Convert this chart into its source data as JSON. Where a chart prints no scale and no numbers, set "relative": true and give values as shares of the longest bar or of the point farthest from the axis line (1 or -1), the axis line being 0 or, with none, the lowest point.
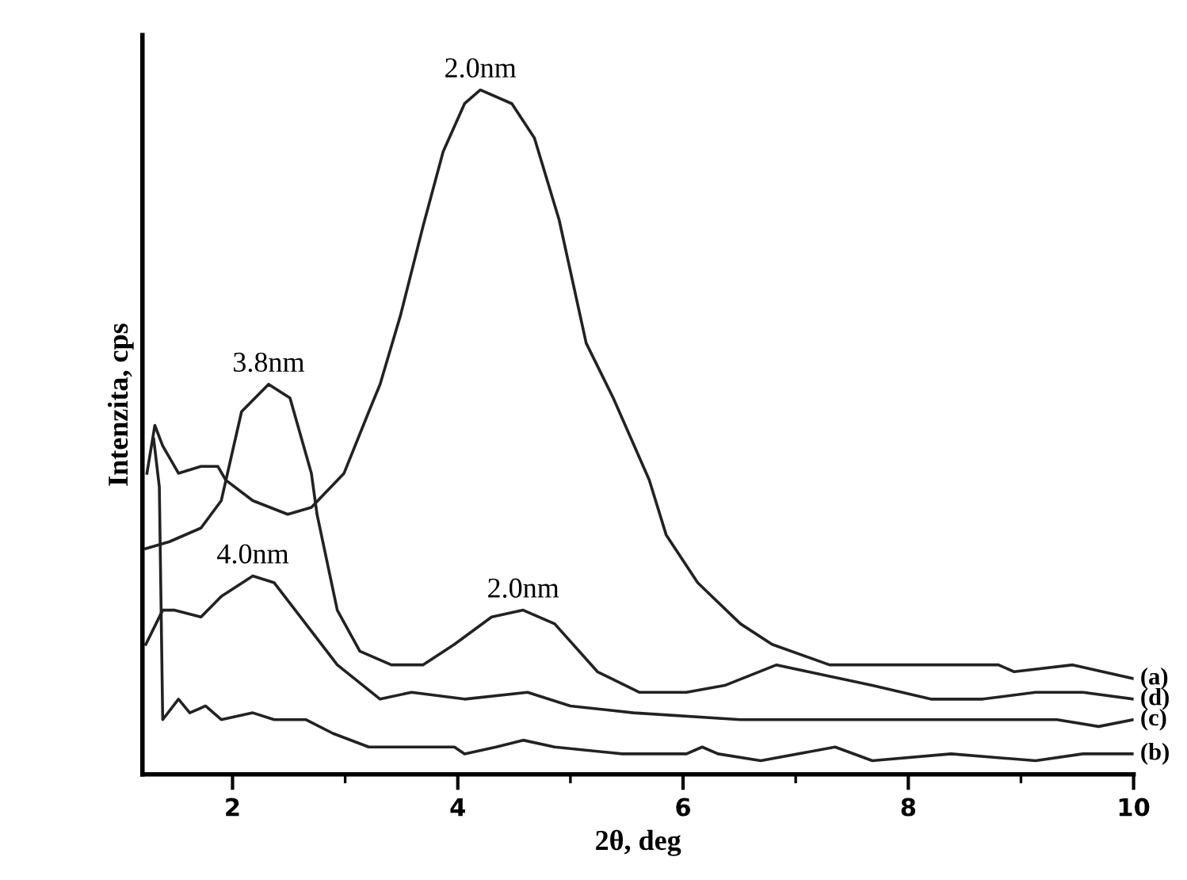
{
  "chart_data": {
    "type": "line",
    "relative": true,
    "xlabel": "2θ, deg",
    "ylabel": "Intenzita, cps",
    "xlim": [
      1.2,
      10
    ],
    "xticks": [
      2,
      {
        "value": 3,
        "label": null
      },
      4,
      {
        "value": 5,
        "label": null
      },
      6,
      {
        "value": 7,
        "label": null
      },
      8,
      {
        "value": 9,
        "label": null
      },
      10
    ],
    "grid": false,
    "legend": false,
    "marker": "none",
    "line_style": "solid",
    "annotations": [
      {
        "text": "2.0nm",
        "x": 4.2,
        "y": 1.0
      },
      {
        "text": "3.8nm",
        "x": 2.32,
        "y": 0.57
      },
      {
        "text": "4.0nm",
        "x": 2.18,
        "y": 0.29
      },
      {
        "text": "2.0nm",
        "x": 4.58,
        "y": 0.24
      }
    ],
    "series": [
      {
        "name": "(a)",
        "color": "#222222",
        "x": [
          1.24,
          1.31,
          1.38,
          1.52,
          1.72,
          1.87,
          1.94,
          2.18,
          2.49,
          2.7,
          2.99,
          3.21,
          3.31,
          3.49,
          3.69,
          3.87,
          4.06,
          4.2,
          4.48,
          4.68,
          4.9,
          5.14,
          5.38,
          5.7,
          5.85,
          6.13,
          6.51,
          6.79,
          7.3,
          7.92,
          8.8,
          8.94,
          9.46,
          10.0
        ],
        "values": [
          0.44,
          0.51,
          0.48,
          0.44,
          0.45,
          0.45,
          0.43,
          0.4,
          0.38,
          0.39,
          0.44,
          0.53,
          0.57,
          0.67,
          0.8,
          0.91,
          0.98,
          1.0,
          0.98,
          0.93,
          0.81,
          0.63,
          0.55,
          0.43,
          0.35,
          0.28,
          0.22,
          0.19,
          0.16,
          0.16,
          0.16,
          0.15,
          0.16,
          0.14
        ]
      },
      {
        "name": "(d)",
        "color": "#222222",
        "x": [
          1.23,
          1.44,
          1.72,
          1.9,
          2.08,
          2.32,
          2.51,
          2.7,
          2.75,
          2.93,
          3.13,
          3.41,
          3.69,
          3.97,
          4.3,
          4.58,
          4.86,
          5.24,
          5.61,
          6.03,
          6.37,
          6.83,
          7.11,
          7.68,
          8.2,
          8.66,
          9.13,
          9.55,
          10.0
        ],
        "values": [
          0.33,
          0.34,
          0.36,
          0.4,
          0.53,
          0.57,
          0.55,
          0.44,
          0.38,
          0.24,
          0.18,
          0.16,
          0.16,
          0.19,
          0.23,
          0.24,
          0.22,
          0.15,
          0.12,
          0.12,
          0.13,
          0.16,
          0.15,
          0.13,
          0.11,
          0.11,
          0.12,
          0.12,
          0.11
        ]
      },
      {
        "name": "(c)",
        "color": "#222222",
        "x": [
          1.23,
          1.38,
          1.48,
          1.72,
          1.9,
          2.18,
          2.37,
          2.65,
          2.93,
          3.31,
          3.59,
          4.06,
          4.62,
          5.0,
          5.56,
          6.51,
          7.44,
          8.2,
          8.85,
          9.32,
          9.69,
          10.0
        ],
        "values": [
          0.19,
          0.24,
          0.24,
          0.23,
          0.26,
          0.29,
          0.28,
          0.22,
          0.16,
          0.11,
          0.12,
          0.11,
          0.12,
          0.1,
          0.09,
          0.08,
          0.08,
          0.08,
          0.08,
          0.08,
          0.07,
          0.08
        ]
      },
      {
        "name": "(b)",
        "color": "#222222",
        "x": [
          1.3,
          1.35,
          1.38,
          1.52,
          1.62,
          1.76,
          1.9,
          2.18,
          2.37,
          2.65,
          2.89,
          3.21,
          3.59,
          3.97,
          4.06,
          4.34,
          4.58,
          4.86,
          5.46,
          6.03,
          6.17,
          6.31,
          6.69,
          7.35,
          7.68,
          8.38,
          9.13,
          9.55,
          10.0
        ],
        "values": [
          0.49,
          0.42,
          0.08,
          0.11,
          0.09,
          0.1,
          0.08,
          0.09,
          0.08,
          0.08,
          0.06,
          0.04,
          0.04,
          0.04,
          0.03,
          0.04,
          0.05,
          0.04,
          0.03,
          0.03,
          0.04,
          0.03,
          0.02,
          0.04,
          0.02,
          0.03,
          0.02,
          0.03,
          0.03
        ]
      }
    ]
  }
}
